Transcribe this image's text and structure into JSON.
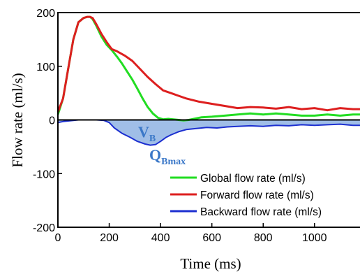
{
  "chart_data": {
    "type": "line",
    "xlabel": "Time (ms)",
    "ylabel": "Flow rate (ml/s)",
    "xlim": [
      0,
      1180
    ],
    "ylim": [
      -200,
      200
    ],
    "xticks": [
      "0",
      "200",
      "400",
      "600",
      "800",
      "1000"
    ],
    "yticks": [
      "200",
      "100",
      "0",
      "-100",
      "-200"
    ],
    "xtick_values": [
      0,
      200,
      400,
      600,
      800,
      1000
    ],
    "ytick_values": [
      200,
      100,
      0,
      -100,
      -200
    ],
    "legend_position": "bottom-right",
    "annotations": {
      "volume_main": "V",
      "volume_sub": "B",
      "peak_main": "Q",
      "peak_sub": "Bmax"
    },
    "series": [
      {
        "name": "Global flow rate (ml/s)",
        "color": "#22dd22",
        "x": [
          0,
          20,
          40,
          60,
          80,
          100,
          115,
          125,
          135,
          150,
          170,
          190,
          210,
          230,
          250,
          270,
          290,
          310,
          330,
          350,
          370,
          390,
          410,
          430,
          450,
          470,
          490,
          510,
          530,
          560,
          600,
          650,
          700,
          750,
          800,
          850,
          900,
          950,
          1000,
          1050,
          1100,
          1150,
          1180
        ],
        "y": [
          10,
          40,
          95,
          150,
          182,
          190,
          192,
          192,
          188,
          175,
          155,
          140,
          130,
          118,
          105,
          90,
          75,
          58,
          40,
          24,
          12,
          4,
          1,
          2,
          1,
          0,
          -1,
          0,
          2,
          5,
          6,
          8,
          10,
          12,
          10,
          12,
          10,
          8,
          8,
          10,
          8,
          10,
          10
        ]
      },
      {
        "name": "Forward flow rate (ml/s)",
        "color": "#dd1f1f",
        "x": [
          0,
          20,
          40,
          60,
          80,
          100,
          115,
          125,
          135,
          150,
          170,
          190,
          210,
          230,
          260,
          290,
          320,
          350,
          380,
          410,
          440,
          470,
          500,
          550,
          600,
          650,
          700,
          750,
          800,
          850,
          900,
          950,
          1000,
          1050,
          1100,
          1150,
          1180
        ],
        "y": [
          15,
          40,
          95,
          150,
          182,
          190,
          192,
          192,
          190,
          178,
          160,
          145,
          132,
          128,
          120,
          110,
          95,
          80,
          67,
          55,
          50,
          45,
          40,
          34,
          30,
          26,
          22,
          24,
          23,
          21,
          24,
          20,
          22,
          18,
          22,
          20,
          20
        ]
      },
      {
        "name": "Backward flow rate (ml/s)",
        "color": "#1c2fd0",
        "x": [
          0,
          20,
          40,
          60,
          80,
          100,
          150,
          180,
          200,
          220,
          250,
          280,
          310,
          340,
          360,
          380,
          400,
          420,
          440,
          470,
          500,
          540,
          580,
          620,
          660,
          700,
          750,
          800,
          850,
          900,
          950,
          1000,
          1050,
          1100,
          1150,
          1180
        ],
        "y": [
          -5,
          -3,
          -2,
          -1,
          0,
          0,
          0,
          -1,
          -5,
          -15,
          -25,
          -32,
          -40,
          -45,
          -47,
          -46,
          -40,
          -33,
          -28,
          -22,
          -18,
          -16,
          -14,
          -15,
          -13,
          -12,
          -11,
          -12,
          -10,
          -11,
          -9,
          -10,
          -9,
          -8,
          -10,
          -10
        ]
      }
    ]
  }
}
